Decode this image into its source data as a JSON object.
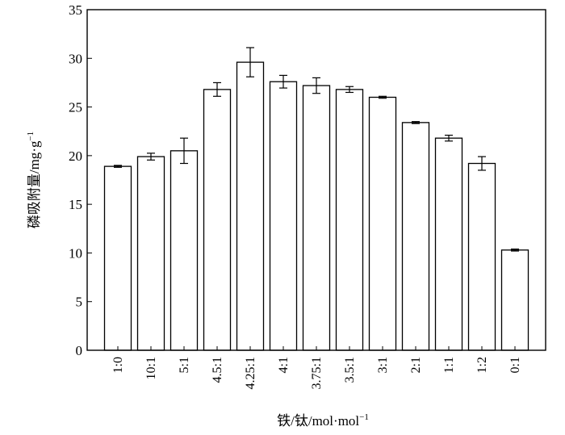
{
  "chart_data": {
    "type": "bar",
    "categories": [
      "1:0",
      "10:1",
      "5:1",
      "4.5:1",
      "4.25:1",
      "4:1",
      "3.75:1",
      "3.5:1",
      "3:1",
      "2:1",
      "1:1",
      "1:2",
      "0:1"
    ],
    "values": [
      18.9,
      19.9,
      20.5,
      26.8,
      29.6,
      27.6,
      27.2,
      26.8,
      26.0,
      23.4,
      21.8,
      19.2,
      10.3
    ],
    "errors": [
      0.1,
      0.35,
      1.3,
      0.7,
      1.5,
      0.65,
      0.8,
      0.3,
      0.1,
      0.1,
      0.3,
      0.7,
      0.1
    ],
    "ylim": [
      0,
      35
    ],
    "yticks": [
      0,
      5,
      10,
      15,
      20,
      25,
      30,
      35
    ],
    "xlabel_main": "铁/钛/mol·mol",
    "xlabel_sup": "−1",
    "ylabel_main": "磷吸附量/mg·g",
    "ylabel_sup": "−1",
    "title": "",
    "grid": false,
    "colors": {
      "bar_fill": "#ffffff",
      "stroke": "#000000"
    }
  }
}
